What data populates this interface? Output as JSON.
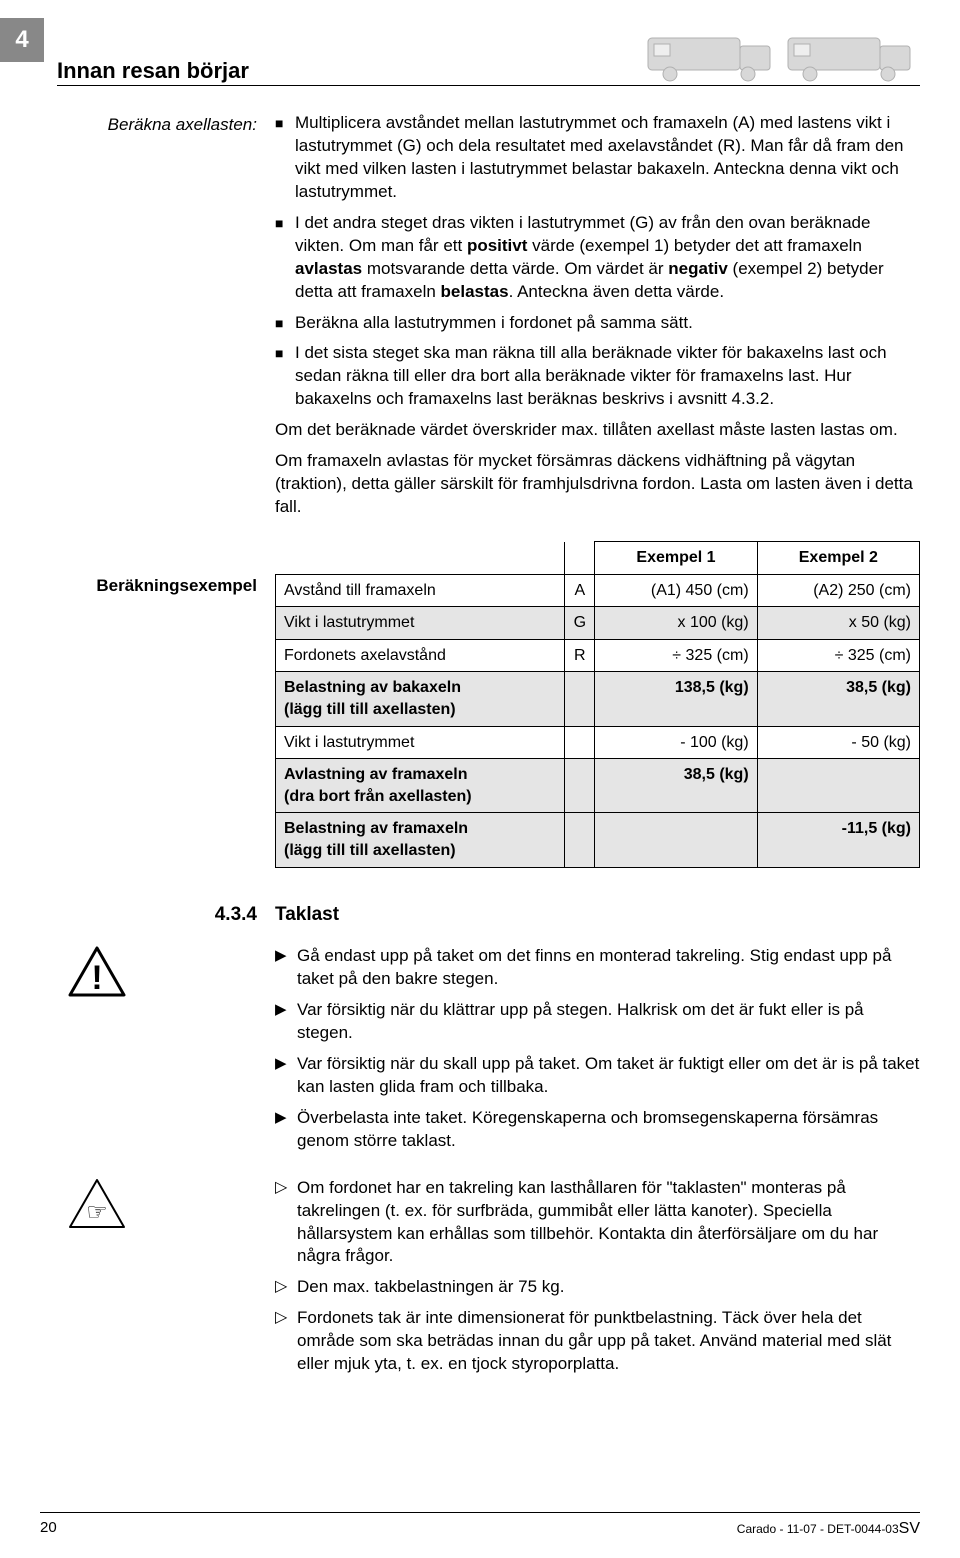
{
  "chapter_number": "4",
  "header_title": "Innan resan börjar",
  "calc_axle": {
    "side_label": "Beräkna axellasten:",
    "bullets": [
      {
        "pre": "Multiplicera avståndet mellan lastutrymmet och framaxeln (A) med lastens vikt i lastutrymmet (G) och dela resultatet med axelavståndet (R). Man får då fram den vikt med vilken lasten i lastutrymmet belastar bakaxeln. Anteckna denna vikt och lastutrymmet."
      },
      {
        "pre": "I det andra steget dras vikten i lastutrymmet (G) av från den ovan beräknade vikten. Om man får ett ",
        "b1": "positivt",
        "mid1": " värde (exempel 1) betyder det att framaxeln ",
        "b2": "avlastas",
        "mid2": " motsvarande detta värde. Om värdet är ",
        "b3": "negativ",
        "mid3": " (exempel 2) betyder detta att framaxeln ",
        "b4": "belastas",
        "post": ". Anteckna även detta värde."
      },
      {
        "pre": "Beräkna alla lastutrymmen i fordonet på samma sätt."
      },
      {
        "pre": "I det sista steget ska man räkna till alla beräknade vikter för bakaxelns last och sedan räkna till eller dra bort alla beräknade vikter för framaxelns last. Hur bakaxelns och framaxelns last beräknas beskrivs i avsnitt 4.3.2."
      }
    ],
    "para1": "Om det beräknade värdet överskrider max. tillåten axellast måste lasten lastas om.",
    "para2": "Om framaxeln avlastas för mycket försämras däckens vidhäftning på vägytan (traktion), detta gäller särskilt för framhjulsdrivna fordon. Lasta om lasten även i detta fall."
  },
  "example": {
    "side_label": "Beräkningsexempel",
    "headers": {
      "ex1": "Exempel 1",
      "ex2": "Exempel 2"
    },
    "rows": [
      {
        "label": "Avstånd till framaxeln",
        "sym": "A",
        "v1": "(A1) 450 (cm)",
        "v2": "(A2) 250 (cm)",
        "shade": false,
        "bold": false
      },
      {
        "label": "Vikt i lastutrymmet",
        "sym": "G",
        "v1": "x 100 (kg)",
        "v2": "x 50 (kg)",
        "shade": true,
        "bold": false
      },
      {
        "label": "Fordonets axelavstånd",
        "sym": "R",
        "v1": "÷ 325 (cm)",
        "v2": "÷ 325 (cm)",
        "shade": false,
        "bold": false
      },
      {
        "label": "Belastning av bakaxeln",
        "sub": "(lägg till till axellasten)",
        "sym": "",
        "v1": "138,5 (kg)",
        "v2": "38,5 (kg)",
        "shade": true,
        "bold": true
      },
      {
        "label": "Vikt i lastutrymmet",
        "sym": "",
        "v1": "- 100 (kg)",
        "v2": "- 50 (kg)",
        "shade": false,
        "bold": false
      },
      {
        "label": "Avlastning av framaxeln",
        "sub": "(dra bort från axellasten)",
        "sym": "",
        "v1": "38,5 (kg)",
        "v2": "",
        "shade": true,
        "bold": true
      },
      {
        "label": "Belastning av framaxeln",
        "sub": "(lägg till till axellasten)",
        "sym": "",
        "v1": "",
        "v2": "-11,5 (kg)",
        "shade": true,
        "bold": true
      }
    ]
  },
  "section": {
    "num": "4.3.4",
    "title": "Taklast"
  },
  "warning": {
    "items": [
      "Gå endast upp på taket om det finns en monterad takreling. Stig endast upp på taket på den bakre stegen.",
      "Var försiktig när du klättrar upp på stegen. Halkrisk om det är fukt eller is på stegen.",
      "Var försiktig när du skall upp på taket. Om taket är fuktigt eller om det är is på taket kan lasten glida fram och tillbaka.",
      "Överbelasta inte taket. Köregenskaperna och bromsegenskaperna försämras genom större taklast."
    ]
  },
  "note": {
    "items": [
      "Om fordonet har en takreling kan lasthållaren för \"taklasten\" monteras på takrelingen (t. ex. för surfbräda, gummibåt eller lätta kanoter). Speciella hållarsystem kan erhållas som tillbehör. Kontakta din återförsäljare om du har några frågor.",
      "Den max. takbelastningen är 75 kg.",
      "Fordonets tak är inte dimensionerat för punktbelastning. Täck över hela det område som ska beträdas innan du går upp på taket. Använd material med slät eller mjuk yta, t. ex. en tjock styroporplatta."
    ]
  },
  "footer": {
    "page": "20",
    "doc": "Carado - 11-07 - DET-0044-03",
    "lang": "SV"
  },
  "colors": {
    "tab_bg": "#888888",
    "shade_bg": "#e5e5e5"
  }
}
